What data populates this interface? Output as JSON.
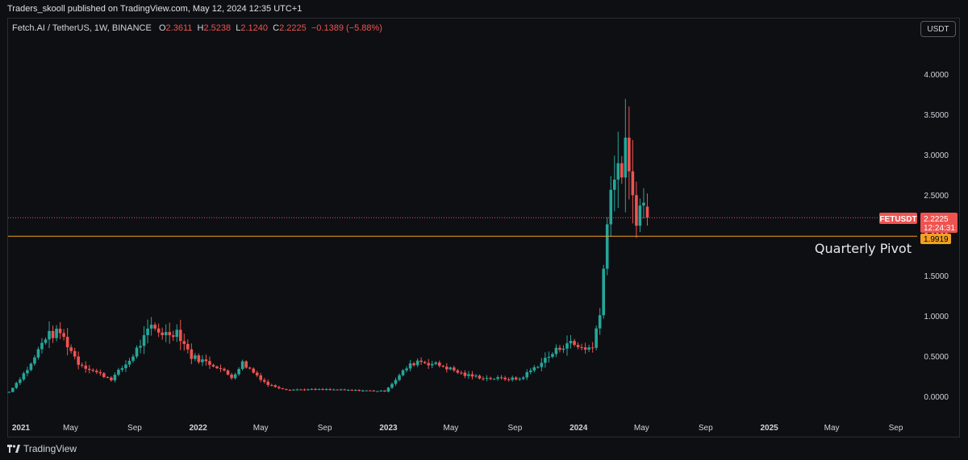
{
  "header": {
    "text": "Traders_skooll published on TradingView.com, May 12, 2024 12:35 UTC+1"
  },
  "legend": {
    "symbol": "Fetch.AI / TetherUS, 1W, BINANCE",
    "o_label": "O",
    "o": "2.3611",
    "h_label": "H",
    "h": "2.5238",
    "l_label": "L",
    "l": "2.1240",
    "c_label": "C",
    "c": "2.2225",
    "change": "−0.1389 (−5.88%)"
  },
  "currency_button": "USDT",
  "price_label": {
    "symbol": "FETUSDT",
    "price": "2.2225",
    "countdown": "12:24:31"
  },
  "pivot_label": {
    "value": "1.9919",
    "text": "Quarterly Pivot"
  },
  "footer": {
    "brand": "TradingView"
  },
  "colors": {
    "up": "#26a69a",
    "down": "#ef5350",
    "pivot": "#f0a020",
    "background": "#0e0f13"
  },
  "chart_data": {
    "type": "candlestick",
    "symbol": "FETUSDT",
    "timeframe": "1W",
    "y_ticks": [
      "0.0000",
      "0.5000",
      "1.0000",
      "1.5000",
      "2.0000",
      "2.5000",
      "3.0000",
      "3.5000",
      "4.0000"
    ],
    "x_ticks": [
      "2021",
      "May",
      "Sep",
      "2022",
      "May",
      "Sep",
      "2023",
      "May",
      "Sep",
      "2024",
      "May",
      "Sep",
      "2025",
      "May",
      "Sep"
    ],
    "ylim": [
      -0.3,
      4.4
    ],
    "xlim": [
      "2021-01-01",
      "2025-10-12"
    ],
    "last_price": 2.2225,
    "pivot": 1.9919,
    "series": [
      {
        "date": "2021-01-03",
        "close": 0.06
      },
      {
        "date": "2021-02-14",
        "close": 0.4
      },
      {
        "date": "2021-03-14",
        "close": 0.75
      },
      {
        "date": "2021-04-11",
        "close": 0.8
      },
      {
        "date": "2021-05-16",
        "close": 0.42
      },
      {
        "date": "2021-06-20",
        "close": 0.3
      },
      {
        "date": "2021-07-18",
        "close": 0.22
      },
      {
        "date": "2021-08-22",
        "close": 0.45
      },
      {
        "date": "2021-10-03",
        "close": 0.86
      },
      {
        "date": "2021-10-31",
        "close": 0.78
      },
      {
        "date": "2021-11-21",
        "close": 0.82
      },
      {
        "date": "2021-12-19",
        "close": 0.5
      },
      {
        "date": "2022-02-06",
        "close": 0.38
      },
      {
        "date": "2022-03-06",
        "close": 0.24
      },
      {
        "date": "2022-03-27",
        "close": 0.42
      },
      {
        "date": "2022-05-15",
        "close": 0.15
      },
      {
        "date": "2022-06-19",
        "close": 0.09
      },
      {
        "date": "2022-09-04",
        "close": 0.09
      },
      {
        "date": "2022-12-25",
        "close": 0.07
      },
      {
        "date": "2023-02-05",
        "close": 0.36
      },
      {
        "date": "2023-02-26",
        "close": 0.45
      },
      {
        "date": "2023-04-16",
        "close": 0.38
      },
      {
        "date": "2023-05-28",
        "close": 0.27
      },
      {
        "date": "2023-07-09",
        "close": 0.23
      },
      {
        "date": "2023-09-10",
        "close": 0.22
      },
      {
        "date": "2023-11-05",
        "close": 0.5
      },
      {
        "date": "2023-12-10",
        "close": 0.68
      },
      {
        "date": "2023-12-31",
        "close": 0.62
      },
      {
        "date": "2024-01-28",
        "close": 0.6
      },
      {
        "date": "2024-02-11",
        "close": 1.1
      },
      {
        "date": "2024-02-25",
        "close": 2.1
      },
      {
        "date": "2024-03-03",
        "close": 2.75
      },
      {
        "date": "2024-03-17",
        "close": 2.7
      },
      {
        "date": "2024-03-31",
        "close": 3.05
      },
      {
        "date": "2024-04-07",
        "close": 2.65
      },
      {
        "date": "2024-04-21",
        "close": 2.3
      },
      {
        "date": "2024-05-05",
        "close": 2.36
      },
      {
        "date": "2024-05-12",
        "close": 2.2225
      }
    ]
  }
}
